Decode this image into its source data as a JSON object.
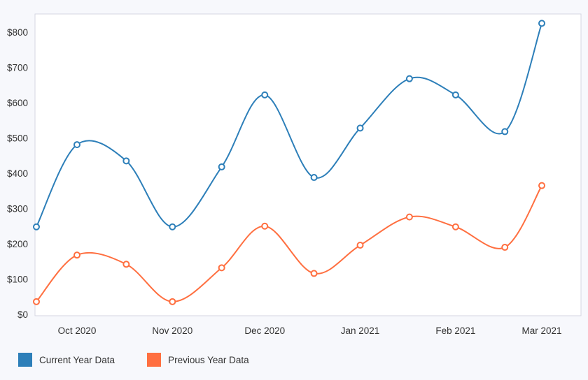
{
  "chart_data": {
    "type": "line",
    "x": [
      "2020-09-15",
      "2020-10-01",
      "2020-10-17",
      "2020-11-01",
      "2020-11-17",
      "2020-12-01",
      "2020-12-17",
      "2021-01-01",
      "2021-01-17",
      "2021-02-01",
      "2021-02-17",
      "2021-03-01",
      "2021-03-15"
    ],
    "x_tick_labels": [
      "Oct 2020",
      "Nov 2020",
      "Dec 2020",
      "Jan 2021",
      "Feb 2021",
      "Mar 2021"
    ],
    "y_tick_labels": [
      "$0",
      "$100",
      "$200",
      "$300",
      "$400",
      "$500",
      "$600",
      "$700",
      "$800"
    ],
    "ylim": [
      0,
      800
    ],
    "series": [
      {
        "name": "Current Year Data",
        "color": "#2d7fb9",
        "values": [
          248,
          481,
          435,
          248,
          418,
          622,
          388,
          528,
          668,
          622,
          518,
          825,
          825
        ]
      },
      {
        "name": "Previous Year Data",
        "color": "#ff6f40",
        "values": [
          36,
          168,
          142,
          36,
          132,
          250,
          116,
          196,
          276,
          248,
          190,
          365,
          365
        ]
      }
    ],
    "grid": false,
    "legend_position": "bottom-left"
  }
}
